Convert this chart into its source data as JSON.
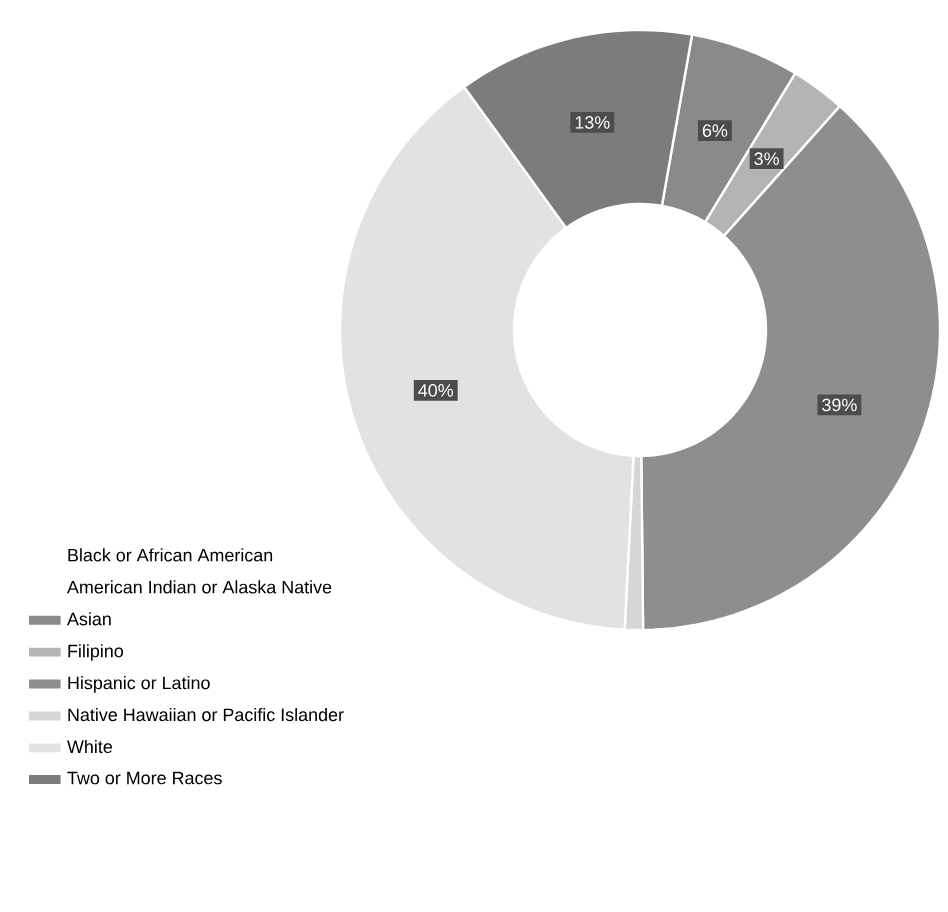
{
  "chart_data": {
    "type": "donut",
    "categories": [
      "Black or African American",
      "American Indian or Alaska Native",
      "Asian",
      "Filipino",
      "Hispanic or Latino",
      "Native Hawaiian or Pacific Islander",
      "White",
      "Two or More Races"
    ],
    "values": [
      0,
      0,
      6,
      3,
      39,
      1,
      40,
      13
    ],
    "value_labels": [
      null,
      null,
      "6%",
      "3%",
      "39%",
      null,
      "40%",
      "13%"
    ],
    "colors": [
      "#ffffff",
      "#ffffff",
      "#8a8a8a",
      "#b4b4b4",
      "#8e8e8e",
      "#d6d6d6",
      "#e2e2e2",
      "#7c7c7c"
    ],
    "legend": "bottom left"
  }
}
